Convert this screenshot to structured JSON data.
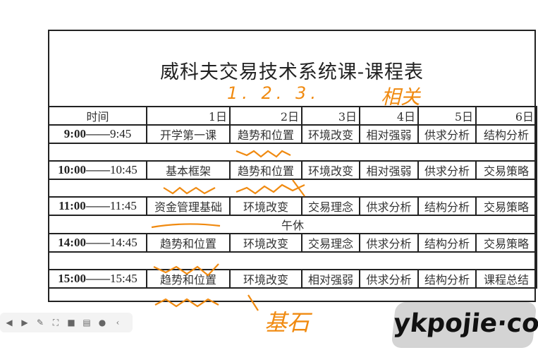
{
  "title": "威科夫交易技术系统课-课程表",
  "header": [
    "时间",
    "1日",
    "2日",
    "3日",
    "4日",
    "5日",
    "6日"
  ],
  "rows": [
    {
      "start": "9:00",
      "sep": "——",
      "end": "9:45",
      "cells": [
        "开学第一课",
        "趋势和位置",
        "环境改变",
        "相对强弱",
        "供求分析",
        "结构分析"
      ]
    },
    {
      "start": "10:00",
      "sep": "——",
      "end": "10:45",
      "cells": [
        "基本框架",
        "趋势和位置",
        "环境改变",
        "相对强弱",
        "供求分析",
        "交易策略"
      ]
    },
    {
      "start": "11:00",
      "sep": "——",
      "end": "11:45",
      "cells": [
        "资金管理基础",
        "环境改变",
        "交易理念",
        "供求分析",
        "结构分析",
        "交易策略"
      ]
    },
    {
      "start": "14:00",
      "sep": "——",
      "end": "14:45",
      "cells": [
        "趋势和位置",
        "环境改变",
        "交易理念",
        "供求分析",
        "结构分析",
        "交易策略"
      ]
    },
    {
      "start": "15:00",
      "sep": "——",
      "end": "15:45",
      "cells": [
        "趋势和位置",
        "环境改变",
        "相对强弱",
        "供求分析",
        "结构分析",
        "课程总结"
      ]
    }
  ],
  "lunch": "午休",
  "annotations": {
    "numbers": "1.  2.  3.",
    "related": "相关",
    "foundation": "基石",
    "color": "#f08a10"
  },
  "toolbar": {
    "icons": [
      "prev-icon",
      "next-icon",
      "pen-icon",
      "screenshot-icon",
      "camera-icon",
      "comment-icon",
      "more-icon",
      "collapse-icon"
    ]
  },
  "watermark": "ykpojie·com"
}
